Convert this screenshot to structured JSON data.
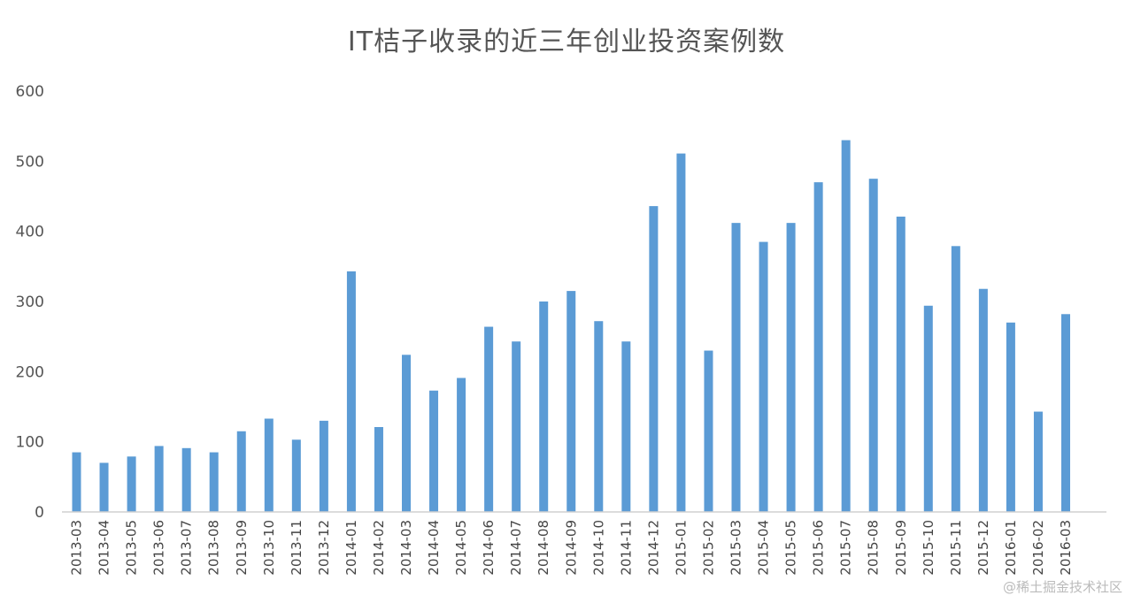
{
  "chart_data": {
    "type": "bar",
    "title": "IT桔子收录的近三年创业投资案例数",
    "xlabel": "",
    "ylabel": "",
    "ylim": [
      0,
      600
    ],
    "yticks": [
      0,
      100,
      200,
      300,
      400,
      500,
      600
    ],
    "grid": false,
    "legend": "none",
    "bar_color": "#5b9bd5",
    "categories": [
      "2013-03",
      "2013-04",
      "2013-05",
      "2013-06",
      "2013-07",
      "2013-08",
      "2013-09",
      "2013-10",
      "2013-11",
      "2013-12",
      "2014-01",
      "2014-02",
      "2014-03",
      "2014-04",
      "2014-05",
      "2014-06",
      "2014-07",
      "2014-08",
      "2014-09",
      "2014-10",
      "2014-11",
      "2014-12",
      "2015-01",
      "2015-02",
      "2015-03",
      "2015-04",
      "2015-05",
      "2015-06",
      "2015-07",
      "2015-08",
      "2015-09",
      "2015-10",
      "2015-11",
      "2015-12",
      "2016-01",
      "2016-02",
      "2016-03"
    ],
    "values": [
      85,
      70,
      79,
      94,
      91,
      85,
      115,
      133,
      103,
      130,
      343,
      121,
      224,
      173,
      191,
      264,
      243,
      300,
      315,
      272,
      243,
      436,
      511,
      230,
      412,
      385,
      412,
      470,
      530,
      475,
      421,
      294,
      379,
      318,
      270,
      143,
      282
    ]
  },
  "watermark": "@稀土掘金技术社区"
}
